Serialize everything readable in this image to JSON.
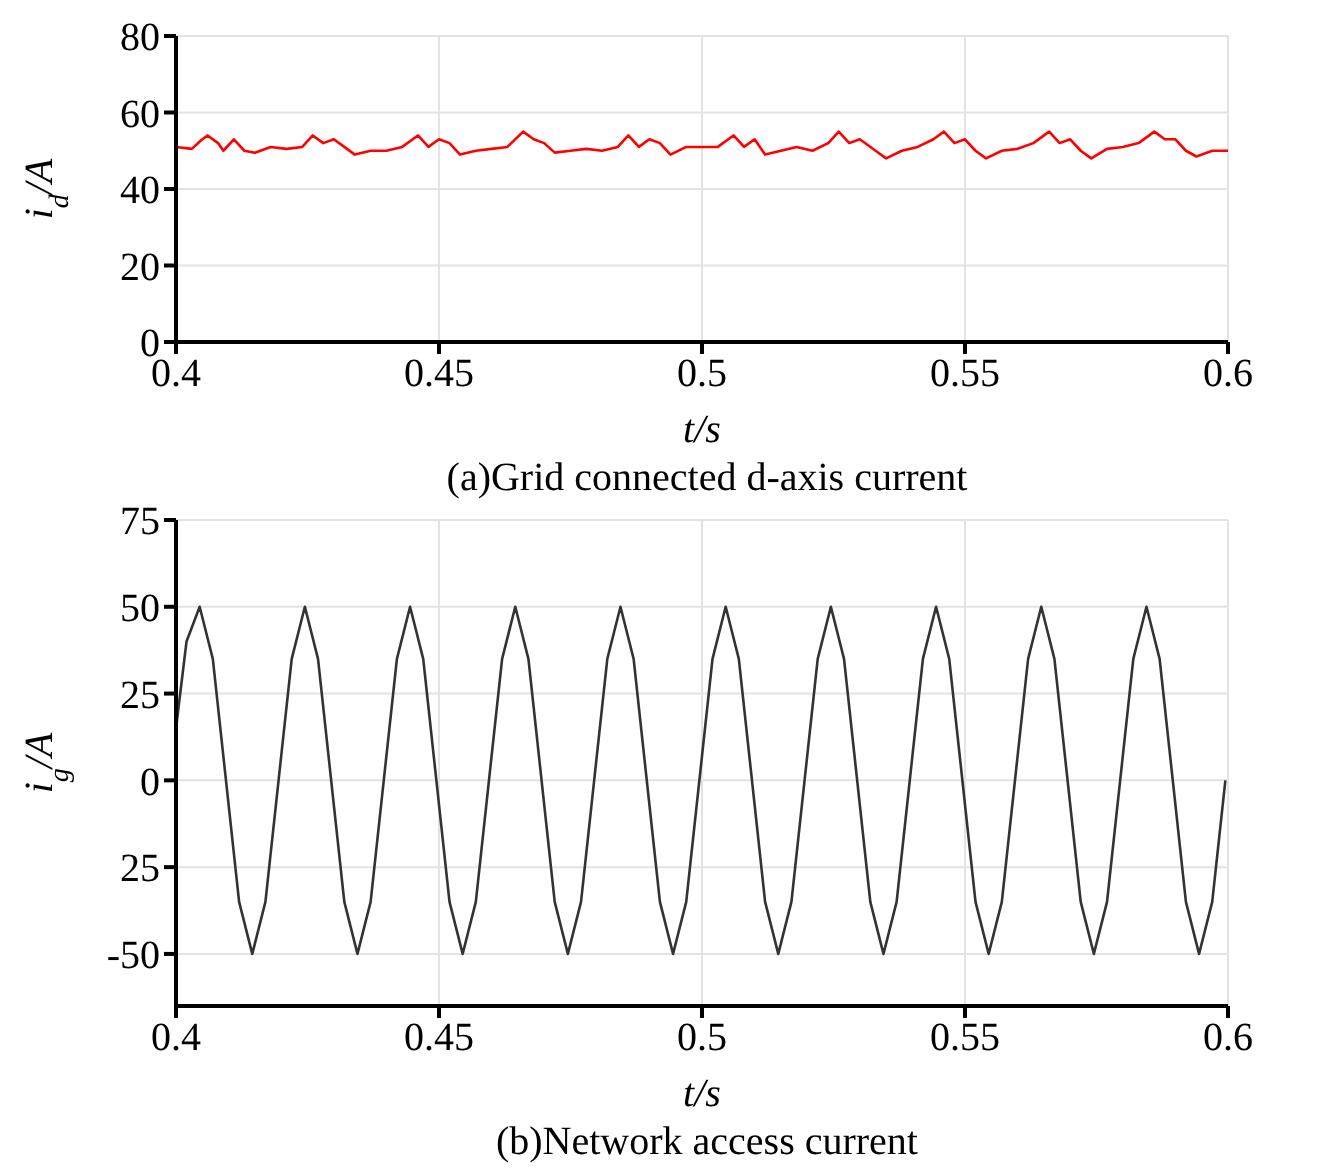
{
  "chart_data": [
    {
      "type": "line",
      "title": "(a)Grid connected d-axis current",
      "xlabel": "t/s",
      "ylabel": "i$_{d}$/A",
      "xlim": [
        0.4,
        0.6
      ],
      "xticks": [
        0.4,
        0.45,
        0.5,
        0.55,
        0.6
      ],
      "ylim": [
        0,
        80
      ],
      "yticks": [
        0,
        20,
        40,
        60,
        80
      ],
      "grid": true,
      "marker": "none",
      "series": [
        {
          "color": "#ff0000",
          "x": [
            0.4,
            0.403,
            0.405,
            0.406,
            0.408,
            0.409,
            0.411,
            0.413,
            0.415,
            0.418,
            0.421,
            0.424,
            0.426,
            0.428,
            0.43,
            0.432,
            0.434,
            0.437,
            0.44,
            0.443,
            0.446,
            0.448,
            0.45,
            0.452,
            0.454,
            0.457,
            0.46,
            0.463,
            0.466,
            0.468,
            0.47,
            0.472,
            0.475,
            0.478,
            0.481,
            0.484,
            0.486,
            0.488,
            0.49,
            0.492,
            0.494,
            0.497,
            0.5,
            0.503,
            0.506,
            0.508,
            0.51,
            0.512,
            0.515,
            0.518,
            0.521,
            0.524,
            0.526,
            0.528,
            0.53,
            0.533,
            0.535,
            0.538,
            0.541,
            0.544,
            0.546,
            0.548,
            0.55,
            0.552,
            0.554,
            0.557,
            0.56,
            0.563,
            0.566,
            0.568,
            0.57,
            0.572,
            0.574,
            0.577,
            0.58,
            0.583,
            0.586,
            0.588,
            0.59,
            0.592,
            0.594,
            0.597,
            0.6
          ],
          "values": [
            51,
            50.5,
            53,
            54,
            52,
            50,
            53,
            50,
            49.5,
            51,
            50.5,
            51,
            54,
            52,
            53,
            51,
            49,
            50,
            50,
            51,
            54,
            51,
            53,
            52,
            49,
            50,
            50.5,
            51,
            55,
            53,
            52,
            49.5,
            50,
            50.5,
            50,
            51,
            54,
            51,
            53,
            52,
            49,
            51,
            51,
            51,
            54,
            51,
            53,
            49,
            50,
            51,
            50,
            52,
            55,
            52,
            53,
            50,
            48,
            50,
            51,
            53,
            55,
            52,
            53,
            50,
            48,
            50,
            50.5,
            52,
            55,
            52,
            53,
            50,
            48,
            50.5,
            51,
            52,
            55,
            53,
            53,
            50,
            48.5,
            50,
            50
          ]
        }
      ]
    },
    {
      "type": "line",
      "title": "(b)Network access current",
      "xlabel": "t/s",
      "ylabel": "i$_{g}$/A",
      "xlim": [
        0.4,
        0.6
      ],
      "xticks": [
        0.4,
        0.45,
        0.5,
        0.55,
        0.6
      ],
      "ylim": [
        -65,
        75
      ],
      "yticks": [
        -50,
        {
          "value": -25,
          "label": "25"
        },
        0,
        25,
        50,
        75
      ],
      "grid": true,
      "marker": "none",
      "series": [
        {
          "color": "#333333",
          "x": [
            0.4,
            0.402,
            0.4045,
            0.407,
            0.4095,
            0.412,
            0.4145,
            0.417,
            0.4195,
            0.422,
            0.4245,
            0.427,
            0.4295,
            0.432,
            0.4345,
            0.437,
            0.4395,
            0.442,
            0.4445,
            0.447,
            0.4495,
            0.452,
            0.4545,
            0.457,
            0.4595,
            0.462,
            0.4645,
            0.467,
            0.4695,
            0.472,
            0.4745,
            0.477,
            0.4795,
            0.482,
            0.4845,
            0.487,
            0.4895,
            0.492,
            0.4945,
            0.497,
            0.4995,
            0.502,
            0.5045,
            0.507,
            0.5095,
            0.512,
            0.5145,
            0.517,
            0.5195,
            0.522,
            0.5245,
            0.527,
            0.5295,
            0.532,
            0.5345,
            0.537,
            0.5395,
            0.542,
            0.5445,
            0.547,
            0.5495,
            0.552,
            0.5545,
            0.557,
            0.5595,
            0.562,
            0.5645,
            0.567,
            0.5695,
            0.572,
            0.5745,
            0.577,
            0.5795,
            0.582,
            0.5845,
            0.587,
            0.5895,
            0.592,
            0.5945,
            0.597,
            0.5995
          ],
          "values": [
            15,
            40,
            50,
            35,
            0,
            -35,
            -50,
            -35,
            0,
            35,
            50,
            35,
            0,
            -35,
            -50,
            -35,
            0,
            35,
            50,
            35,
            0,
            -35,
            -50,
            -35,
            0,
            35,
            50,
            35,
            0,
            -35,
            -50,
            -35,
            0,
            35,
            50,
            35,
            0,
            -35,
            -50,
            -35,
            0,
            35,
            50,
            35,
            0,
            -35,
            -50,
            -35,
            0,
            35,
            50,
            35,
            0,
            -35,
            -50,
            -35,
            0,
            35,
            50,
            35,
            0,
            -35,
            -50,
            -35,
            0,
            35,
            50,
            35,
            0,
            -35,
            -50,
            -35,
            0,
            35,
            50,
            35,
            0,
            -35,
            -50,
            -35,
            0
          ]
        }
      ]
    }
  ]
}
